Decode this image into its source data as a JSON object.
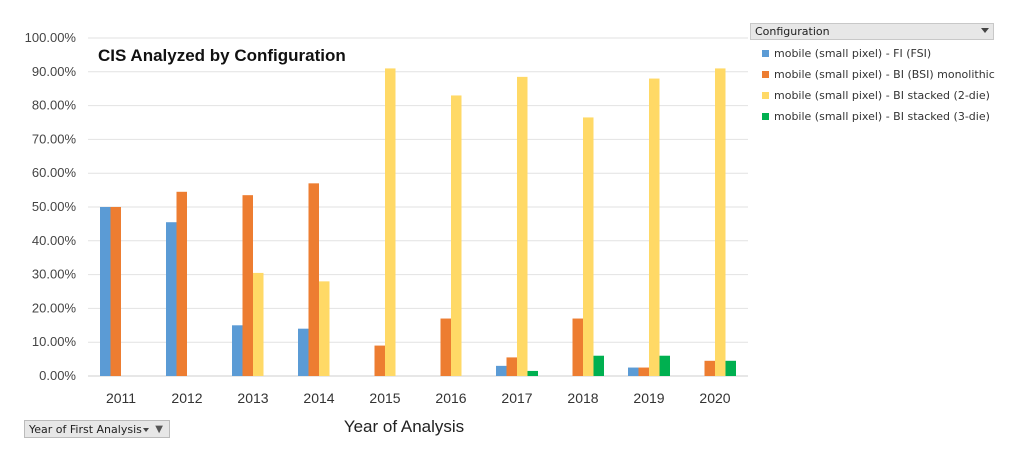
{
  "chart_data": {
    "type": "bar",
    "title": "CIS Analyzed by Configuration",
    "xlabel": "Year of Analysis",
    "ylabel": "",
    "ylim": [
      0,
      1
    ],
    "yticks": [
      "0.00%",
      "10.00%",
      "20.00%",
      "30.00%",
      "40.00%",
      "50.00%",
      "60.00%",
      "70.00%",
      "80.00%",
      "90.00%",
      "100.00%"
    ],
    "categories": [
      "2011",
      "2012",
      "2013",
      "2014",
      "2015",
      "2016",
      "2017",
      "2018",
      "2019",
      "2020"
    ],
    "grid": true,
    "legend_position": "right",
    "series": [
      {
        "name": "mobile (small pixel) - FI (FSI)",
        "color": "#5b9bd5",
        "values": [
          0.5,
          0.455,
          0.15,
          0.14,
          0,
          0,
          0.03,
          0,
          0.025,
          0
        ]
      },
      {
        "name": "mobile (small pixel) - BI (BSI) monolithic",
        "color": "#ed7d31",
        "values": [
          0.5,
          0.545,
          0.535,
          0.57,
          0.09,
          0.17,
          0.055,
          0.17,
          0.025,
          0.045
        ]
      },
      {
        "name": "mobile (small pixel) - BI stacked (2-die)",
        "color": "#ffd966",
        "values": [
          0,
          0,
          0.305,
          0.28,
          0.91,
          0.83,
          0.885,
          0.765,
          0.88,
          0.91
        ]
      },
      {
        "name": "mobile (small pixel) - BI stacked (3-die)",
        "color": "#00b050",
        "values": [
          0,
          0,
          0,
          0,
          0,
          0,
          0.015,
          0.06,
          0.06,
          0.045
        ]
      }
    ]
  },
  "legend": {
    "header": "Configuration"
  },
  "filter": {
    "label": "Year of First Analysis"
  },
  "icons": {
    "legend_dropdown": "chevron-down-icon",
    "filter": "funnel-icon"
  }
}
